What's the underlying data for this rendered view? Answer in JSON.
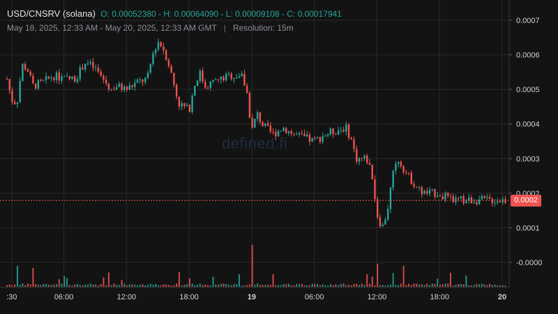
{
  "header": {
    "symbol": "USD/CNSRV (solana)",
    "open_label": "O:",
    "open": "0.00052380",
    "high_label": "H:",
    "high": "0.00064090",
    "low_label": "L:",
    "low": "0.00009108",
    "close_label": "C:",
    "close": "0.00017941",
    "range": "May 18, 2025, 12:33 AM - May 20, 2025, 12:33 AM GMT",
    "separator": "|",
    "resolution": "Resolution: 15m"
  },
  "watermark": "defined.fi",
  "current_price_label": "0.0002",
  "colors": {
    "background": "#131313",
    "up": "#26a69a",
    "down": "#ef5350",
    "grid": "#2a2a2a",
    "price_line": "#ef5350"
  },
  "chart_data": {
    "type": "candlestick",
    "ylim": [
      -8e-05,
      0.00078
    ],
    "ytick_labels": [
      {
        "value": 0.0007,
        "label": "0.0007"
      },
      {
        "value": 0.0006,
        "label": "0.0006"
      },
      {
        "value": 0.0005,
        "label": "0.0005"
      },
      {
        "value": 0.0004,
        "label": "0.0004"
      },
      {
        "value": 0.0003,
        "label": "0.0003"
      },
      {
        "value": 0.0002,
        "label": "0.0002"
      },
      {
        "value": 0.0001,
        "label": "0.0001"
      },
      {
        "value": 0.0,
        "label": "-0.0000"
      }
    ],
    "xtick_labels": [
      {
        "hour": 1,
        "label": ":30",
        "bold": false
      },
      {
        "hour": 6,
        "label": "06:00",
        "bold": false
      },
      {
        "hour": 12,
        "label": "12:00",
        "bold": false
      },
      {
        "hour": 18,
        "label": "18:00",
        "bold": false
      },
      {
        "hour": 24,
        "label": "19",
        "bold": true
      },
      {
        "hour": 30,
        "label": "06:00",
        "bold": false
      },
      {
        "hour": 36,
        "label": "12:00",
        "bold": false
      },
      {
        "hour": 42,
        "label": "18:00",
        "bold": false
      },
      {
        "hour": 48,
        "label": "20",
        "bold": true
      }
    ],
    "xlim_hours": [
      0.55,
      48.4
    ],
    "current_price": 0.000179,
    "price_path": [
      [
        0.55,
        0.00053
      ],
      [
        1.0,
        0.00047
      ],
      [
        1.5,
        0.00046
      ],
      [
        2.0,
        0.00057
      ],
      [
        2.5,
        0.00056
      ],
      [
        3.0,
        0.00051
      ],
      [
        4.0,
        0.00052
      ],
      [
        5.0,
        0.00054
      ],
      [
        6.0,
        0.00053
      ],
      [
        7.0,
        0.00053
      ],
      [
        7.5,
        0.00055
      ],
      [
        8.0,
        0.00058
      ],
      [
        9.0,
        0.00056
      ],
      [
        10.0,
        0.00052
      ],
      [
        10.5,
        0.0005
      ],
      [
        11.0,
        0.00051
      ],
      [
        12.0,
        0.0005
      ],
      [
        13.0,
        0.00052
      ],
      [
        14.0,
        0.00053
      ],
      [
        14.5,
        0.0006
      ],
      [
        15.0,
        0.00064
      ],
      [
        15.5,
        0.00062
      ],
      [
        16.0,
        0.00058
      ],
      [
        16.5,
        0.00052
      ],
      [
        17.0,
        0.00046
      ],
      [
        18.0,
        0.00044
      ],
      [
        18.5,
        0.00051
      ],
      [
        19.0,
        0.00055
      ],
      [
        19.5,
        0.00051
      ],
      [
        21.0,
        0.00053
      ],
      [
        22.0,
        0.00054
      ],
      [
        23.0,
        0.00054
      ],
      [
        23.5,
        0.0005
      ],
      [
        24.0,
        0.00038
      ],
      [
        24.5,
        0.00043
      ],
      [
        25.0,
        0.0004
      ],
      [
        26.0,
        0.00037
      ],
      [
        27.0,
        0.00039
      ],
      [
        28.0,
        0.00037
      ],
      [
        30.0,
        0.00035
      ],
      [
        31.0,
        0.00037
      ],
      [
        32.0,
        0.00038
      ],
      [
        33.0,
        0.00039
      ],
      [
        33.5,
        0.00036
      ],
      [
        34.0,
        0.0003
      ],
      [
        35.0,
        0.0003
      ],
      [
        35.5,
        0.00026
      ],
      [
        36.0,
        0.00014
      ],
      [
        36.5,
        0.0001
      ],
      [
        37.0,
        0.00015
      ],
      [
        37.5,
        0.00025
      ],
      [
        38.0,
        0.0003
      ],
      [
        39.0,
        0.00025
      ],
      [
        40.0,
        0.00021
      ],
      [
        40.5,
        0.0002
      ],
      [
        42.0,
        0.0002
      ],
      [
        43.0,
        0.00018
      ],
      [
        44.0,
        0.00018
      ],
      [
        45.0,
        0.00018
      ],
      [
        46.0,
        0.00018
      ],
      [
        48.4,
        0.00018
      ]
    ],
    "volume_spikes": [
      [
        1.5,
        0.5
      ],
      [
        3.0,
        0.45
      ],
      [
        17.0,
        0.35
      ],
      [
        24.0,
        1.0
      ],
      [
        36.0,
        0.55
      ],
      [
        37.5,
        0.45
      ],
      [
        38.5,
        0.5
      ],
      [
        26.0,
        0.3
      ],
      [
        35.0,
        0.3
      ]
    ]
  }
}
